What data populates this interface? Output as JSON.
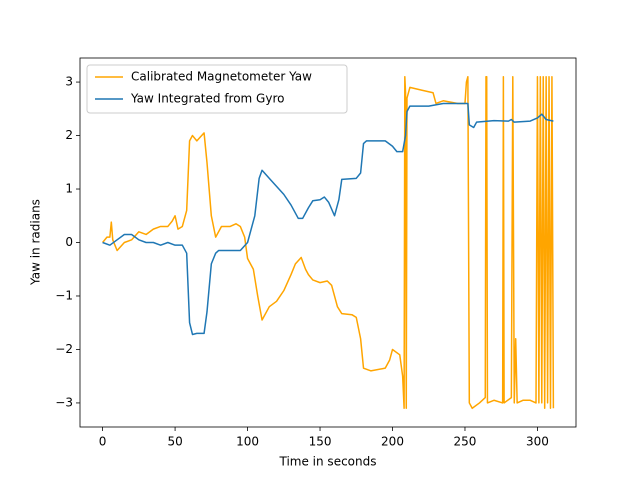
{
  "chart_data": {
    "type": "line",
    "xlabel": "Time in seconds",
    "ylabel": "Yaw in radians",
    "xlim": [
      -15.6,
      326.6
    ],
    "ylim": [
      -3.45,
      3.45
    ],
    "xticks": [
      0,
      50,
      100,
      150,
      200,
      250,
      300
    ],
    "yticks": [
      {
        "value": -3,
        "label": "−3"
      },
      {
        "value": -2,
        "label": "−2"
      },
      {
        "value": -1,
        "label": "−1"
      },
      0,
      1,
      2,
      3
    ],
    "legend": "upper left",
    "series": [
      {
        "name": "Calibrated Magnetometer Yaw",
        "color": "#ffa500",
        "x": [
          0,
          3,
          5,
          6,
          7,
          10,
          15,
          20,
          25,
          30,
          35,
          40,
          45,
          48,
          50,
          52,
          55,
          58,
          60,
          62,
          65,
          70,
          72,
          75,
          78,
          82,
          88,
          92,
          95,
          98,
          100,
          104,
          107,
          110,
          115,
          120,
          125,
          130,
          133,
          137,
          140,
          142,
          145,
          150,
          155,
          158,
          162,
          165,
          172,
          175,
          178,
          180,
          185,
          195,
          198,
          200,
          205,
          207,
          208,
          208.5,
          209,
          209.5,
          210,
          212,
          220,
          228,
          230,
          235,
          245,
          250,
          251,
          252,
          253,
          255,
          260,
          264,
          264.5,
          265,
          265.5,
          270,
          276,
          276.5,
          277,
          282,
          283,
          284,
          285,
          286,
          290,
          295,
          299,
          300,
          301,
          302,
          303,
          304,
          305,
          306,
          307,
          308,
          309,
          310,
          311
        ],
        "values": [
          0,
          0.1,
          0.1,
          0.38,
          0.05,
          -0.15,
          0,
          0.05,
          0.2,
          0.15,
          0.25,
          0.3,
          0.3,
          0.4,
          0.5,
          0.25,
          0.3,
          0.6,
          1.9,
          2.0,
          1.9,
          2.05,
          1.5,
          0.5,
          0.1,
          0.3,
          0.3,
          0.35,
          0.3,
          0.1,
          -0.3,
          -0.5,
          -1.0,
          -1.45,
          -1.2,
          -1.1,
          -0.9,
          -0.6,
          -0.4,
          -0.28,
          -0.5,
          -0.6,
          -0.7,
          -0.75,
          -0.72,
          -0.8,
          -1.2,
          -1.33,
          -1.35,
          -1.4,
          -1.8,
          -2.35,
          -2.4,
          -2.35,
          -2.2,
          -2.0,
          -2.1,
          -2.5,
          -3.1,
          3.1,
          2.8,
          -3.1,
          2.7,
          2.9,
          2.85,
          2.8,
          2.6,
          2.65,
          2.6,
          2.6,
          3.0,
          3.1,
          -3.0,
          -3.1,
          -3.0,
          -2.9,
          3.1,
          3.1,
          -3.0,
          -2.95,
          -3.0,
          3.1,
          -3.0,
          -2.9,
          3.1,
          -3.0,
          -1.8,
          -3.0,
          -2.95,
          -2.95,
          -3.0,
          3.1,
          -3.0,
          3.1,
          -3.0,
          3.1,
          -3.1,
          3.1,
          -3.0,
          3.1,
          -3.1,
          3.1,
          -3.1
        ]
      },
      {
        "name": "Yaw Integrated from Gyro",
        "color": "#1f77b4",
        "x": [
          0,
          5,
          10,
          15,
          20,
          25,
          30,
          35,
          40,
          45,
          50,
          55,
          58,
          60,
          62,
          65,
          70,
          72,
          75,
          78,
          80,
          90,
          95,
          100,
          105,
          108,
          110,
          115,
          125,
          130,
          135,
          138,
          142,
          145,
          150,
          153,
          156,
          160,
          163,
          165,
          175,
          178,
          180,
          182,
          195,
          200,
          203,
          207,
          209,
          210,
          212,
          225,
          235,
          250,
          252,
          253,
          256,
          258,
          270,
          280,
          282,
          284,
          295,
          300,
          303,
          306,
          311
        ],
        "values": [
          0,
          -0.05,
          0.05,
          0.15,
          0.15,
          0.05,
          0,
          0,
          -0.05,
          0,
          -0.05,
          -0.05,
          -0.2,
          -1.5,
          -1.72,
          -1.7,
          -1.7,
          -1.3,
          -0.4,
          -0.2,
          -0.15,
          -0.15,
          -0.15,
          0,
          0.5,
          1.2,
          1.35,
          1.2,
          0.9,
          0.7,
          0.45,
          0.45,
          0.65,
          0.78,
          0.8,
          0.85,
          0.75,
          0.5,
          0.8,
          1.18,
          1.2,
          1.3,
          1.85,
          1.9,
          1.9,
          1.8,
          1.7,
          1.7,
          2.0,
          2.45,
          2.55,
          2.55,
          2.6,
          2.6,
          2.6,
          2.2,
          2.15,
          2.25,
          2.28,
          2.27,
          2.3,
          2.25,
          2.27,
          2.33,
          2.4,
          2.3,
          2.27
        ]
      }
    ]
  }
}
